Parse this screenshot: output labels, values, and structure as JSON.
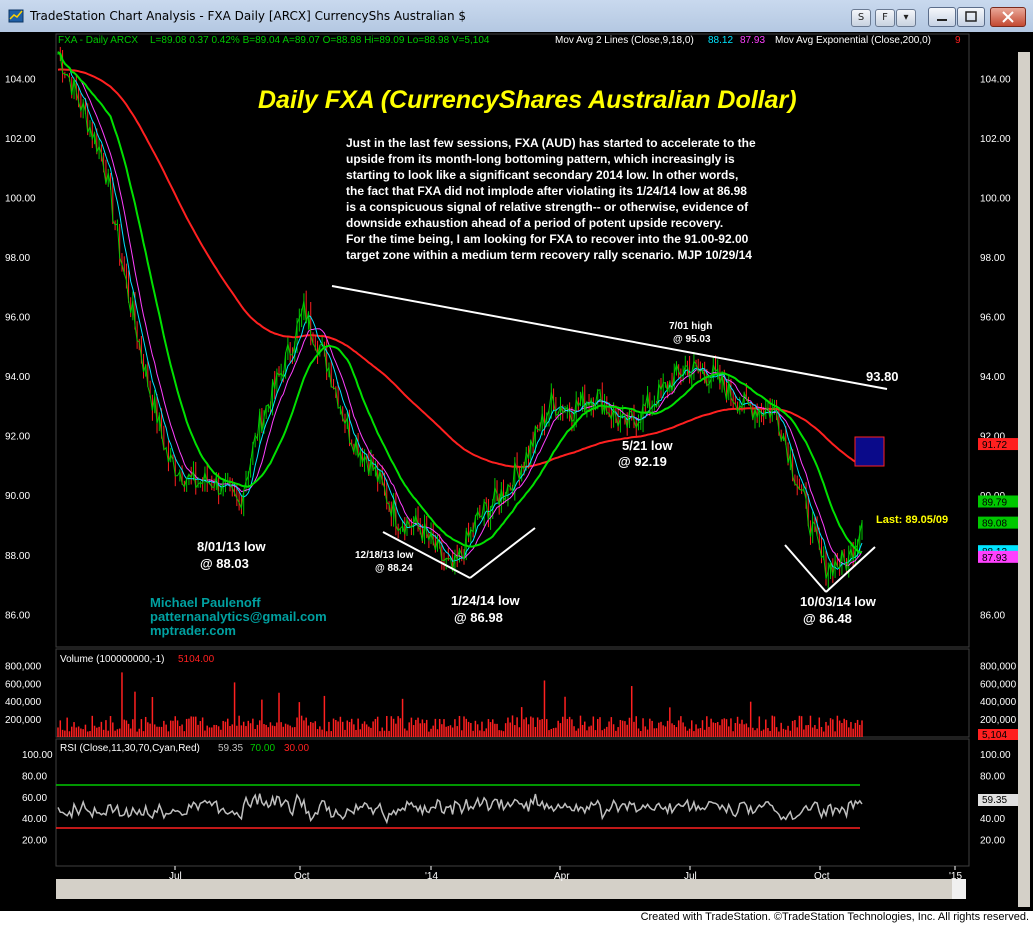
{
  "window": {
    "title": "TradeStation Chart Analysis - FXA Daily [ARCX] CurrencyShs Australian $",
    "buttons": [
      "S",
      "F"
    ],
    "footer": "Created with TradeStation. ©TradeStation Technologies, Inc. All rights reserved."
  },
  "colors": {
    "background": "#000000",
    "price_up": "#00c800",
    "price_down": "#ff2020",
    "ma_fast": "#00e5ff",
    "ma_slow": "#ff40ff",
    "ema200": "#ff2020",
    "volume": "#ff2020",
    "rsi": "#c0c0c0",
    "rsi_low": "#00e5ff",
    "rsi_high": "#ff2020",
    "text": "#ffffff",
    "title": "#ffff00",
    "author": "#00a0a0"
  },
  "header": {
    "symbol": "FXA - Daily ARCX",
    "quote": "L=89.08 0.37 0.42% B=89.04 A=89.07 O=88.98 Hi=89.09 Lo=88.98 V=5,104",
    "ma_label": "Mov Avg 2 Lines (Close,9,18,0)",
    "ma_val1": "88.12",
    "ma_val2": "87.93",
    "ema_label": "Mov Avg Exponential (Close,200,0)",
    "ema_val": "9"
  },
  "annotations": {
    "title": "Daily FXA (CurrencyShares Australian Dollar)",
    "commentary": [
      "Just in the last few sessions, FXA (AUD) has started to accelerate to the",
      "upside from its month-long bottoming pattern, which increasingly is",
      "starting to look like a significant secondary 2014 low. In other words,",
      "the fact that FXA did not implode after violating its 1/24/14 low at 86.98",
      "is a conspicuous signal of relative strength-- or otherwise, evidence of",
      "downside exhaustion ahead of a period of potent upside recovery.",
      "For the time being, I am looking for FXA to recover into the 91.00-92.00",
      "target zone within a medium term recovery rally scenario. MJP 10/29/14"
    ],
    "lows": [
      {
        "date": "8/01/13 low",
        "value": "@ 88.03"
      },
      {
        "date": "12/18/13 low",
        "value": "@ 88.24"
      },
      {
        "date": "1/24/14 low",
        "value": "@ 86.98"
      },
      {
        "date": "5/21 low",
        "value": "@ 92.19"
      },
      {
        "date": "10/03/14 low",
        "value": "@ 86.48"
      }
    ],
    "high": {
      "date": "7/01 high",
      "value": "@ 95.03"
    },
    "trendline_label": "93.80",
    "last": "Last: 89.05/09",
    "author": [
      "Michael Paulenoff",
      "patternanalytics@gmail.com",
      "mptrader.com"
    ]
  },
  "price_axis": {
    "ticks": [
      "104.00",
      "102.00",
      "100.00",
      "98.00",
      "96.00",
      "94.00",
      "92.00",
      "90.00",
      "88.00",
      "86.00"
    ]
  },
  "price_tags": [
    {
      "text": "91.72",
      "color": "#ff2020"
    },
    {
      "text": "89.79",
      "color": "#00c800"
    },
    {
      "text": "89.08",
      "color": "#00c800"
    },
    {
      "text": "88.12",
      "color": "#00e5ff"
    },
    {
      "text": "87.93",
      "color": "#ff40ff"
    }
  ],
  "volume_panel": {
    "label": "Volume (100000000,-1)",
    "value": "5104.00",
    "ticks": [
      "800,000",
      "600,000",
      "400,000",
      "200,000"
    ],
    "last_tag": "5,104"
  },
  "rsi_panel": {
    "label": "RSI (Close,11,30,70,Cyan,Red)",
    "value": "59.35",
    "upper": "70.00",
    "lower": "30.00",
    "ticks": [
      "100.00",
      "80.00",
      "60.00",
      "40.00",
      "20.00"
    ],
    "last_tag": "59.35"
  },
  "time_axis": [
    "Jul",
    "Oct",
    "'14",
    "Apr",
    "Jul",
    "Oct",
    "'15"
  ],
  "chart_data": {
    "type": "line",
    "title": "Daily FXA (CurrencyShares Australian Dollar)",
    "xlabel": "",
    "ylabel": "",
    "ylim": [
      84.9,
      105.5
    ],
    "x": [
      "2013-05-01",
      "2013-05-15",
      "2013-06-01",
      "2013-06-15",
      "2013-07-01",
      "2013-07-15",
      "2013-08-01",
      "2013-08-15",
      "2013-09-01",
      "2013-09-15",
      "2013-10-01",
      "2013-10-15",
      "2013-11-01",
      "2013-11-15",
      "2013-12-01",
      "2013-12-18",
      "2014-01-02",
      "2014-01-24",
      "2014-02-10",
      "2014-03-01",
      "2014-03-15",
      "2014-04-01",
      "2014-04-15",
      "2014-05-01",
      "2014-05-21",
      "2014-06-10",
      "2014-07-01",
      "2014-07-20",
      "2014-08-10",
      "2014-09-01",
      "2014-09-15",
      "2014-10-03",
      "2014-10-20",
      "2014-10-29"
    ],
    "series": [
      {
        "name": "FXA - Daily ARCX",
        "values": [
          104.9,
          103.3,
          101.3,
          97.4,
          93.8,
          91.2,
          90.4,
          90.5,
          89.7,
          92.4,
          94.3,
          96.2,
          94.3,
          92.1,
          90.9,
          89.2,
          88.9,
          87.4,
          89.2,
          90.2,
          91.3,
          93.1,
          92.9,
          93.4,
          92.3,
          93.2,
          94.3,
          94.0,
          93.0,
          92.8,
          90.5,
          87.6,
          87.8,
          89.1
        ]
      }
    ],
    "reference_levels": {
      "target_zone": [
        91.0,
        92.0
      ],
      "trendline_end": 93.8,
      "last": 89.08
    }
  }
}
